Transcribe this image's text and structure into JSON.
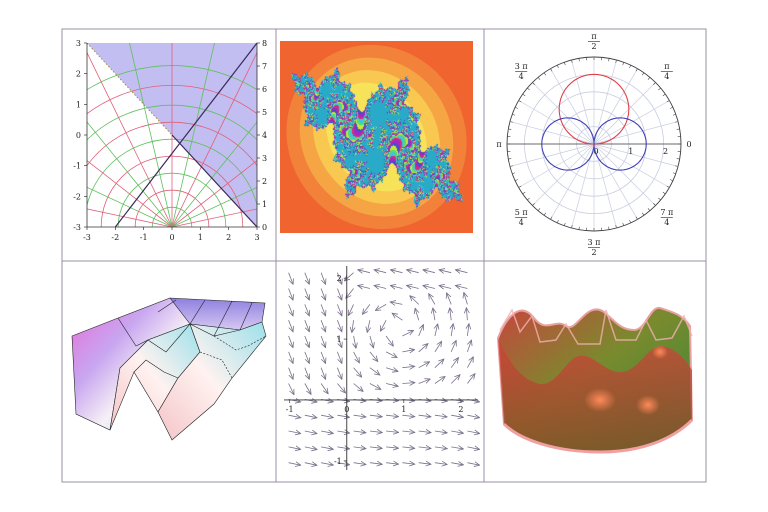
{
  "colors": {
    "frame": "#9a8fa6",
    "region_fill": "#bcb7f0",
    "grid_red": "#e0607a",
    "grid_green": "#5fbf5f",
    "grid_olive": "#9a9040",
    "polar_red": "#e0404a",
    "polar_blue": "#4040b8",
    "polar_grid": "#c9cde0",
    "fractal_bg": "#f06430",
    "fractal_bands": [
      "#f2823a",
      "#f6a544",
      "#f9c850",
      "#f6e35a"
    ],
    "field_arrow": "#7a6f8a"
  },
  "panels": [
    {
      "name": "conformal-map-plot",
      "chart_data": {
        "type": "line",
        "x_ticks": [
          "-3",
          "-2",
          "-1",
          "0",
          "1",
          "2",
          "3"
        ],
        "y_ticks": [
          "-3",
          "-2",
          "-1",
          "0",
          "1",
          "2",
          "3"
        ],
        "right_ticks": [
          "0",
          "1",
          "2",
          "3",
          "4",
          "5",
          "6",
          "7",
          "8"
        ],
        "xlim": [
          -3,
          3
        ],
        "ylim": [
          -3,
          3
        ],
        "region": [
          [
            -3,
            3
          ],
          [
            3,
            3
          ],
          [
            3,
            -3
          ]
        ],
        "diagonals": [
          [
            [
              -2,
              -3
            ],
            [
              3,
              3
            ]
          ],
          [
            [
              0,
              0
            ],
            [
              3,
              -3
            ]
          ]
        ]
      }
    },
    {
      "name": "julia-set-fractal",
      "chart_data": {
        "type": "heatmap",
        "c": [
          -0.8,
          0.156
        ]
      }
    },
    {
      "name": "polar-plot",
      "chart_data": {
        "type": "line",
        "angle_labels": [
          {
            "angle": 90,
            "num": "π",
            "den": "2"
          },
          {
            "angle": 45,
            "num": "π",
            "den": "4"
          },
          {
            "angle": 0,
            "text": "0"
          },
          {
            "angle": -45,
            "num": "7 π",
            "den": "4"
          },
          {
            "angle": -90,
            "num": "3 π",
            "den": "2"
          },
          {
            "angle": -135,
            "num": "5 π",
            "den": "4"
          },
          {
            "angle": 180,
            "text": "π"
          },
          {
            "angle": 135,
            "num": "3 π",
            "den": "4"
          }
        ],
        "radial_ticks": [
          "0",
          "1",
          "2"
        ],
        "rmax": 2.5,
        "series": [
          {
            "curve": "r = 2 sin θ"
          },
          {
            "curve": "r = 1.5 |cos θ|"
          }
        ]
      }
    },
    {
      "name": "3d-polygon-surface",
      "chart_data": {
        "type": "area"
      }
    },
    {
      "name": "vector-field-plot",
      "chart_data": {
        "type": "scatter",
        "x_ticks": [
          "-1",
          "0",
          "1",
          "2"
        ],
        "y_ticks": [
          "-1",
          "1",
          "2"
        ],
        "xlim": [
          -1.1,
          2.3
        ],
        "ylim": [
          -1.15,
          2.2
        ]
      }
    },
    {
      "name": "3d-shaded-surface",
      "chart_data": {
        "type": "area"
      }
    }
  ]
}
